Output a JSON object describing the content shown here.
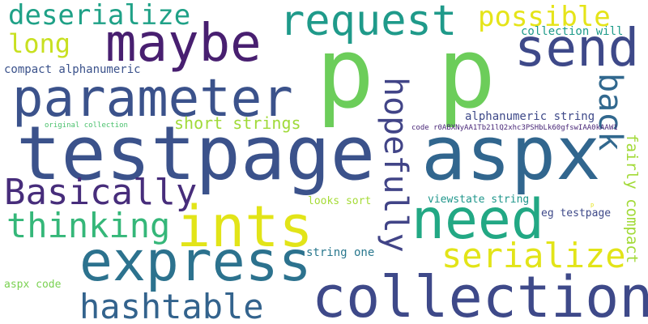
{
  "words": [
    {
      "id": "w-p1",
      "text": "p",
      "color": "#6ccd5a"
    },
    {
      "id": "w-p2",
      "text": "p",
      "color": "#6ccd5a"
    },
    {
      "id": "w-testpage",
      "text": "testpage",
      "color": "#3b528b"
    },
    {
      "id": "w-aspx",
      "text": "aspx",
      "color": "#31668e"
    },
    {
      "id": "w-collection",
      "text": "collection",
      "color": "#3e4989"
    },
    {
      "id": "w-express",
      "text": "express",
      "color": "#2c728e"
    },
    {
      "id": "w-ints",
      "text": "ints",
      "color": "#e2e418"
    },
    {
      "id": "w-need",
      "text": "need",
      "color": "#22a884"
    },
    {
      "id": "w-parameter",
      "text": "parameter",
      "color": "#3b528b"
    },
    {
      "id": "w-maybe",
      "text": "maybe",
      "color": "#481f70"
    },
    {
      "id": "w-request",
      "text": "request",
      "color": "#1f9a8a"
    },
    {
      "id": "w-send",
      "text": "send",
      "color": "#3e4989"
    },
    {
      "id": "w-hashtable",
      "text": "hashtable",
      "color": "#33638d"
    },
    {
      "id": "w-basically",
      "text": "Basically",
      "color": "#472d7b"
    },
    {
      "id": "w-thinking",
      "text": "thinking",
      "color": "#35b779"
    },
    {
      "id": "w-serialize",
      "text": "serialize",
      "color": "#e2e418"
    },
    {
      "id": "w-deserialize",
      "text": "deserialize",
      "color": "#1fa187"
    },
    {
      "id": "w-possible",
      "text": "possible",
      "color": "#e5e419"
    },
    {
      "id": "w-long",
      "text": "long",
      "color": "#c8e020"
    },
    {
      "id": "w-hopefully",
      "text": "hopefully",
      "color": "#414487"
    },
    {
      "id": "w-back",
      "text": "back",
      "color": "#31688e"
    },
    {
      "id": "w-fairly-compact",
      "text": "fairly compact",
      "color": "#a2da37"
    },
    {
      "id": "w-short-strings",
      "text": "short strings",
      "color": "#a0da39"
    },
    {
      "id": "w-collection-will",
      "text": "collection will",
      "color": "#1e9b8a"
    },
    {
      "id": "w-compact-alphanumeric",
      "text": "compact alphanumeric",
      "color": "#3b528b"
    },
    {
      "id": "w-alphanumeric-string",
      "text": "alphanumeric string",
      "color": "#3e4989"
    },
    {
      "id": "w-code-long",
      "text": "code r0ABXNyAA1Tb21lQ2xhc3PSHbLk60gfswIAA0kAAW1",
      "color": "#482677"
    },
    {
      "id": "w-original-collection",
      "text": "original collection",
      "color": "#4ac16d"
    },
    {
      "id": "w-looks-sort",
      "text": "looks sort",
      "color": "#a5db36"
    },
    {
      "id": "w-viewstate-string",
      "text": "viewstate string",
      "color": "#1f968b"
    },
    {
      "id": "w-eg-testpage",
      "text": "eg testpage",
      "color": "#3e4989"
    },
    {
      "id": "w-string-one",
      "text": "string one",
      "color": "#2a788e"
    },
    {
      "id": "w-aspx-code",
      "text": "aspx code",
      "color": "#7ad151"
    },
    {
      "id": "w-tiny-p",
      "text": "p",
      "color": "#e5e419"
    }
  ]
}
